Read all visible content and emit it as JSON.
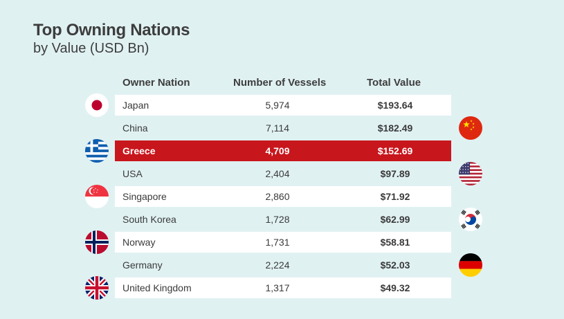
{
  "chart_data": {
    "type": "table",
    "title": "Top Owning Nations",
    "subtitle": "by Value (USD Bn)",
    "columns": [
      "Owner Nation",
      "Number of Vessels",
      "Total Value"
    ],
    "rows": [
      {
        "nation": "Japan",
        "vessels": "5,974",
        "value": "$193.64"
      },
      {
        "nation": "China",
        "vessels": "7,114",
        "value": "$182.49"
      },
      {
        "nation": "Greece",
        "vessels": "4,709",
        "value": "$152.69"
      },
      {
        "nation": "USA",
        "vessels": "2,404",
        "value": "$97.89"
      },
      {
        "nation": "Singapore",
        "vessels": "2,860",
        "value": "$71.92"
      },
      {
        "nation": "South Korea",
        "vessels": "1,728",
        "value": "$62.99"
      },
      {
        "nation": "Norway",
        "vessels": "1,731",
        "value": "$58.81"
      },
      {
        "nation": "Germany",
        "vessels": "2,224",
        "value": "$52.03"
      },
      {
        "nation": "United Kingdom",
        "vessels": "1,317",
        "value": "$49.32"
      }
    ],
    "highlighted_row": "Greece",
    "colors": {
      "background": "#e0f1f2",
      "highlight": "#c8161d",
      "row": "#ffffff",
      "text": "#3a3a3a"
    }
  },
  "flags": [
    {
      "nation": "Japan",
      "icon": "japan-flag-icon",
      "side": "left"
    },
    {
      "nation": "China",
      "icon": "china-flag-icon",
      "side": "right"
    },
    {
      "nation": "Greece",
      "icon": "greece-flag-icon",
      "side": "left"
    },
    {
      "nation": "USA",
      "icon": "usa-flag-icon",
      "side": "right"
    },
    {
      "nation": "Singapore",
      "icon": "singapore-flag-icon",
      "side": "left"
    },
    {
      "nation": "South Korea",
      "icon": "south-korea-flag-icon",
      "side": "right"
    },
    {
      "nation": "Norway",
      "icon": "norway-flag-icon",
      "side": "left"
    },
    {
      "nation": "Germany",
      "icon": "germany-flag-icon",
      "side": "right"
    },
    {
      "nation": "United Kingdom",
      "icon": "uk-flag-icon",
      "side": "left"
    }
  ]
}
